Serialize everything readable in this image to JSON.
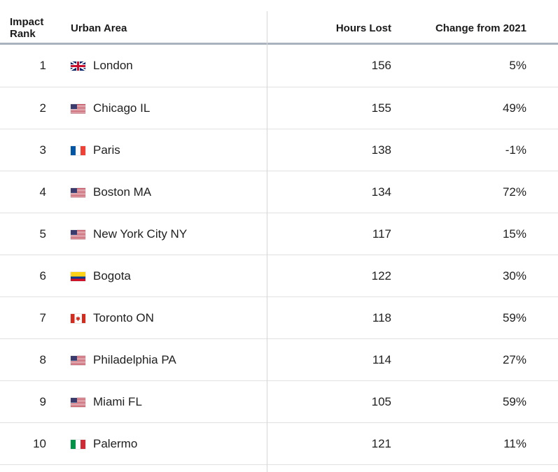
{
  "header": {
    "rank_line1": "Impact",
    "rank_line2": "Rank",
    "area": "Urban Area",
    "hours": "Hours Lost",
    "change": "Change from 2021"
  },
  "rows": [
    {
      "rank": "1",
      "flag": "uk-flag-icon",
      "city": "London",
      "hours": "156",
      "change": "5%"
    },
    {
      "rank": "2",
      "flag": "us-flag-icon",
      "city": "Chicago IL",
      "hours": "155",
      "change": "49%"
    },
    {
      "rank": "3",
      "flag": "france-flag-icon",
      "city": "Paris",
      "hours": "138",
      "change": "-1%"
    },
    {
      "rank": "4",
      "flag": "us-flag-icon",
      "city": "Boston MA",
      "hours": "134",
      "change": "72%"
    },
    {
      "rank": "5",
      "flag": "us-flag-icon",
      "city": "New York City NY",
      "hours": "117",
      "change": "15%"
    },
    {
      "rank": "6",
      "flag": "colombia-flag-icon",
      "city": "Bogota",
      "hours": "122",
      "change": "30%"
    },
    {
      "rank": "7",
      "flag": "canada-flag-icon",
      "city": "Toronto ON",
      "hours": "118",
      "change": "59%"
    },
    {
      "rank": "8",
      "flag": "us-flag-icon",
      "city": "Philadelphia PA",
      "hours": "114",
      "change": "27%"
    },
    {
      "rank": "9",
      "flag": "us-flag-icon",
      "city": "Miami FL",
      "hours": "105",
      "change": "59%"
    },
    {
      "rank": "10",
      "flag": "italy-flag-icon",
      "city": "Palermo",
      "hours": "121",
      "change": "11%"
    }
  ]
}
